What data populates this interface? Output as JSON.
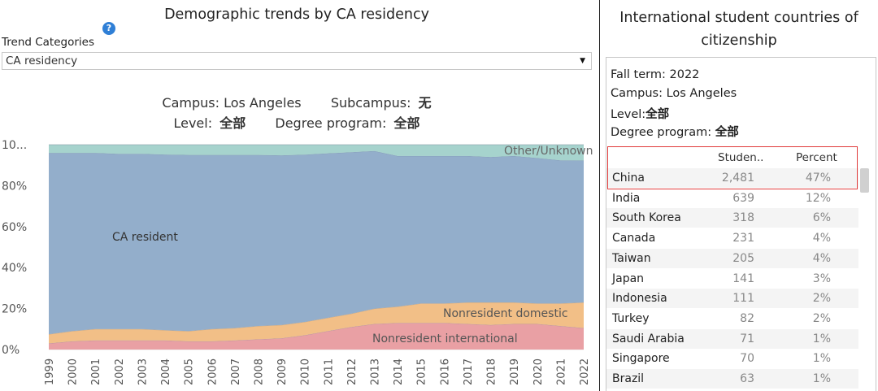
{
  "left": {
    "title": "Demographic trends by CA residency",
    "help_icon": "?",
    "filter_label": "Trend Categories",
    "dropdown_value": "CA residency",
    "context": {
      "campus_label": "Campus:",
      "campus_value": "Los Angeles",
      "subcampus_label": "Subcampus:",
      "subcampus_value": "无",
      "level_label": "Level:",
      "level_value": "全部",
      "degree_label": "Degree program:",
      "degree_value": "全部"
    }
  },
  "chart_data": {
    "type": "area",
    "stacked": true,
    "normalized": true,
    "x": [
      "1999",
      "2000",
      "2001",
      "2002",
      "2003",
      "2004",
      "2005",
      "2006",
      "2007",
      "2008",
      "2009",
      "2010",
      "2011",
      "2012",
      "2013",
      "2014",
      "2015",
      "2016",
      "2017",
      "2018",
      "2019",
      "2020",
      "2021",
      "2022"
    ],
    "y_ticks": [
      "0%",
      "20%",
      "40%",
      "60%",
      "80%",
      "10..."
    ],
    "ylim": [
      0,
      100
    ],
    "grid": true,
    "series": [
      {
        "name": "Nonresident international",
        "color": "#e9a0a4",
        "values": [
          3.0,
          4.0,
          4.5,
          4.5,
          4.5,
          4.5,
          4.0,
          4.0,
          4.5,
          5.0,
          5.5,
          7.0,
          9.0,
          11.0,
          12.5,
          13.0,
          13.0,
          13.0,
          12.5,
          12.0,
          12.5,
          12.5,
          11.5,
          10.5
        ]
      },
      {
        "name": "Nonresident domestic",
        "color": "#f2bf87",
        "values": [
          4.5,
          5.0,
          5.5,
          5.5,
          5.5,
          5.0,
          5.0,
          6.0,
          6.0,
          6.5,
          6.5,
          6.5,
          6.5,
          6.5,
          7.5,
          8.0,
          9.5,
          9.5,
          10.5,
          11.0,
          10.5,
          10.0,
          11.0,
          12.5
        ]
      },
      {
        "name": "CA resident",
        "color": "#93aecb",
        "values": [
          88.5,
          87.0,
          86.0,
          85.5,
          85.5,
          85.7,
          86.0,
          85.0,
          84.5,
          83.5,
          82.8,
          81.6,
          80.3,
          78.8,
          76.9,
          73.5,
          72.0,
          72.0,
          71.5,
          71.0,
          71.5,
          71.0,
          69.9,
          69.3
        ]
      },
      {
        "name": "Other/Unknown",
        "color": "#a6d3cd",
        "values": [
          4.0,
          4.0,
          4.0,
          4.5,
          4.5,
          4.8,
          5.0,
          5.0,
          5.0,
          5.0,
          5.2,
          4.9,
          4.2,
          3.7,
          3.1,
          5.5,
          5.5,
          5.5,
          5.5,
          6.0,
          5.5,
          6.5,
          7.6,
          7.7
        ]
      }
    ],
    "area_labels": [
      {
        "text": "CA resident",
        "series": "CA resident"
      },
      {
        "text": "Nonresident domestic",
        "series": "Nonresident domestic"
      },
      {
        "text": "Nonresident international",
        "series": "Nonresident international"
      },
      {
        "text": "Other/Unknown",
        "series": "Other/Unknown"
      }
    ]
  },
  "right": {
    "title": "International student countries of citizenship",
    "fall_term_label": "Fall term:",
    "fall_term_value": "2022",
    "campus_label": "Campus:",
    "campus_value": "Los Angeles",
    "level_label": "Level:",
    "level_value": "全部",
    "degree_label": "Degree program:",
    "degree_value": "全部",
    "col_students": "Studen..",
    "col_percent": "Percent",
    "rows": [
      {
        "country": "China",
        "students": "2,481",
        "percent": "47%"
      },
      {
        "country": "India",
        "students": "639",
        "percent": "12%"
      },
      {
        "country": "South Korea",
        "students": "318",
        "percent": "6%"
      },
      {
        "country": "Canada",
        "students": "231",
        "percent": "4%"
      },
      {
        "country": "Taiwan",
        "students": "205",
        "percent": "4%"
      },
      {
        "country": "Japan",
        "students": "141",
        "percent": "3%"
      },
      {
        "country": "Indonesia",
        "students": "111",
        "percent": "2%"
      },
      {
        "country": "Turkey",
        "students": "82",
        "percent": "2%"
      },
      {
        "country": "Saudi Arabia",
        "students": "71",
        "percent": "1%"
      },
      {
        "country": "Singapore",
        "students": "70",
        "percent": "1%"
      },
      {
        "country": "Brazil",
        "students": "63",
        "percent": "1%"
      }
    ],
    "highlight_color": "#e03b3b"
  }
}
